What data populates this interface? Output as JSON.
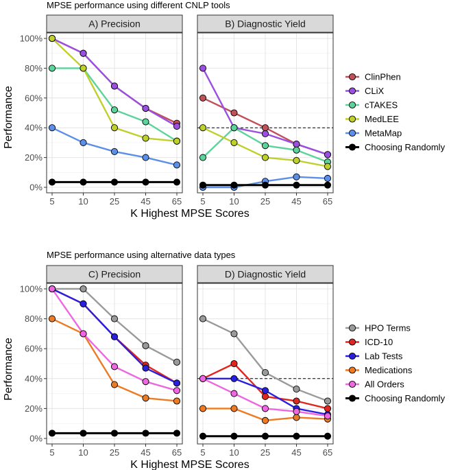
{
  "colors": {
    "ClinPhen": "#c0505a",
    "CLiX": "#9b4fe0",
    "cTAKES": "#5cd39a",
    "MedLEE": "#bfd02a",
    "MetaMap": "#5c8fe8",
    "Choosing Randomly": "#000000",
    "HPO Terms": "#9a9a9a",
    "ICD-10": "#e0261e",
    "Lab Tests": "#2a1ee0",
    "Medications": "#ee7a22",
    "All Orders": "#ee66e0"
  },
  "sections": [
    {
      "title": "MPSE performance using different CNLP tools",
      "ylabel": "Performance",
      "xlabel": "K Highest MPSE Scores",
      "legend": [
        "ClinPhen",
        "CLiX",
        "cTAKES",
        "MedLEE",
        "MetaMap",
        "Choosing Randomly"
      ]
    },
    {
      "title": "MPSE performance using alternative data types",
      "ylabel": "Performance",
      "xlabel": "K Highest MPSE Scores",
      "legend": [
        "HPO Terms",
        "ICD-10",
        "Lab Tests",
        "Medications",
        "All Orders",
        "Choosing Randomly"
      ]
    }
  ],
  "chart_data": [
    {
      "type": "line",
      "title": "A) Precision",
      "x": [
        "5",
        "10",
        "25",
        "45",
        "65"
      ],
      "yticks": [
        "0%",
        "20%",
        "40%",
        "60%",
        "80%",
        "100%"
      ],
      "ylim": [
        0,
        100
      ],
      "series": [
        {
          "name": "ClinPhen",
          "values": [
            100,
            90,
            68,
            53,
            43
          ]
        },
        {
          "name": "CLiX",
          "values": [
            100,
            90,
            68,
            53,
            41
          ]
        },
        {
          "name": "cTAKES",
          "values": [
            80,
            80,
            52,
            44,
            31
          ]
        },
        {
          "name": "MedLEE",
          "values": [
            100,
            80,
            40,
            33,
            31
          ]
        },
        {
          "name": "MetaMap",
          "values": [
            40,
            30,
            24,
            20,
            15
          ]
        },
        {
          "name": "Choosing Randomly",
          "values": [
            3.5,
            3.5,
            3.5,
            3.5,
            3.5
          ]
        }
      ]
    },
    {
      "type": "line",
      "title": "B) Diagnostic Yield",
      "x": [
        "5",
        "10",
        "25",
        "45",
        "65"
      ],
      "ylim": [
        0,
        100
      ],
      "reference_line": 40,
      "series": [
        {
          "name": "ClinPhen",
          "values": [
            60,
            50,
            40,
            29,
            22
          ]
        },
        {
          "name": "CLiX",
          "values": [
            80,
            40,
            36,
            29,
            22
          ]
        },
        {
          "name": "cTAKES",
          "values": [
            20,
            40,
            28,
            25,
            17
          ]
        },
        {
          "name": "MedLEE",
          "values": [
            40,
            30,
            20,
            18,
            14
          ]
        },
        {
          "name": "MetaMap",
          "values": [
            0,
            0,
            4,
            7,
            6
          ]
        },
        {
          "name": "Choosing Randomly",
          "values": [
            1.5,
            1.5,
            1.5,
            1.5,
            1.5
          ]
        }
      ]
    },
    {
      "type": "line",
      "title": "C) Precision",
      "x": [
        "5",
        "10",
        "25",
        "45",
        "65"
      ],
      "yticks": [
        "0%",
        "20%",
        "40%",
        "60%",
        "80%",
        "100%"
      ],
      "ylim": [
        0,
        100
      ],
      "series": [
        {
          "name": "HPO Terms",
          "values": [
            100,
            100,
            80,
            62,
            51
          ]
        },
        {
          "name": "ICD-10",
          "values": [
            100,
            90,
            68,
            49,
            37
          ]
        },
        {
          "name": "Lab Tests",
          "values": [
            100,
            90,
            68,
            47,
            37
          ]
        },
        {
          "name": "Medications",
          "values": [
            80,
            70,
            36,
            27,
            25
          ]
        },
        {
          "name": "All Orders",
          "values": [
            100,
            70,
            48,
            38,
            32
          ]
        },
        {
          "name": "Choosing Randomly",
          "values": [
            3.5,
            3.5,
            3.5,
            3.5,
            3.5
          ]
        }
      ]
    },
    {
      "type": "line",
      "title": "D) Diagnostic Yield",
      "x": [
        "5",
        "10",
        "25",
        "45",
        "65"
      ],
      "ylim": [
        0,
        100
      ],
      "reference_line": 40,
      "series": [
        {
          "name": "HPO Terms",
          "values": [
            80,
            70,
            44,
            33,
            25
          ]
        },
        {
          "name": "ICD-10",
          "values": [
            40,
            50,
            28,
            25,
            20
          ]
        },
        {
          "name": "Lab Tests",
          "values": [
            40,
            40,
            32,
            20,
            16
          ]
        },
        {
          "name": "Medications",
          "values": [
            20,
            20,
            12,
            14,
            13
          ]
        },
        {
          "name": "All Orders",
          "values": [
            40,
            30,
            20,
            18,
            15
          ]
        },
        {
          "name": "Choosing Randomly",
          "values": [
            1.5,
            1.5,
            1.5,
            1.5,
            1.5
          ]
        }
      ]
    }
  ]
}
